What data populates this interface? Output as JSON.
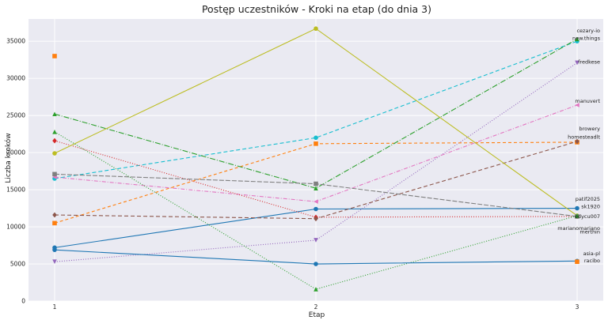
{
  "chart_data": {
    "type": "line",
    "title": "Postęp uczestników - Kroki na etap (do dnia 3)",
    "xlabel": "Etap",
    "ylabel": "Liczba kroków",
    "x": [
      1,
      2,
      3
    ],
    "xticks": [
      1,
      2,
      3
    ],
    "ylim": [
      0,
      38000
    ],
    "yticks": [
      0,
      5000,
      10000,
      15000,
      20000,
      25000,
      30000,
      35000
    ],
    "grid": true,
    "series": [
      {
        "name": "cezary-io",
        "color": "#1f77b4",
        "dash": "",
        "marker": "circle",
        "values": [
          7200,
          12400,
          12500
        ]
      },
      {
        "name": "new.things",
        "color": "#17becf",
        "dash": "5,3",
        "marker": "circle",
        "values": [
          16500,
          22000,
          35000
        ]
      },
      {
        "name": "fredkese",
        "color": "#9467bd",
        "dash": "1,2",
        "marker": "triangle-down",
        "values": [
          5300,
          8200,
          32100
        ]
      },
      {
        "name": "manuvert",
        "color": "#e377c2",
        "dash": "5,2,1,2",
        "marker": "triangle-left",
        "values": [
          16700,
          13400,
          26400
        ]
      },
      {
        "name": "browery",
        "color": "#d62728",
        "dash": "1,2",
        "marker": "diamond",
        "values": [
          21600,
          11300,
          11400
        ]
      },
      {
        "name": "homesteadlt",
        "color": "#ff7f0e",
        "dash": "4,3",
        "marker": "square",
        "values": [
          10500,
          21200,
          21400
        ]
      },
      {
        "name": "patif2025",
        "color": "#2ca02c",
        "dash": "7,2,1,2",
        "marker": "triangle-up",
        "values": [
          25200,
          15200,
          35300
        ]
      },
      {
        "name": "sk1920",
        "color": "#8c564b",
        "dash": "5,3",
        "marker": "diamond",
        "values": [
          11600,
          11100,
          21500
        ]
      },
      {
        "name": "edycu007",
        "color": "#bcbd22",
        "dash": "",
        "marker": "circle",
        "values": [
          19900,
          36700,
          11500
        ]
      },
      {
        "name": "marianomariano",
        "color": "#7f7f7f",
        "dash": "6,2",
        "marker": "square",
        "values": [
          17100,
          15800,
          11400
        ]
      },
      {
        "name": "merthin",
        "color": "#2ca02c",
        "dash": "1,2",
        "marker": "triangle-up",
        "values": [
          22800,
          1600,
          11500
        ]
      },
      {
        "name": "asia-pl",
        "color": "#1f77b4",
        "dash": "",
        "marker": "circle",
        "values": [
          6900,
          5000,
          5400
        ]
      },
      {
        "name": "racibo",
        "color": "#ff7f0e",
        "dash": "",
        "marker": "square",
        "values": [
          33000,
          null,
          5300
        ]
      }
    ],
    "end_labels": [
      {
        "text": "cezary-io",
        "y": 36200
      },
      {
        "text": "new.things",
        "y": 35200
      },
      {
        "text": "fredkese",
        "y": 32000
      },
      {
        "text": "manuvert",
        "y": 26700
      },
      {
        "text": "browery",
        "y": 23000
      },
      {
        "text": "homesteadlt",
        "y": 21900
      },
      {
        "text": "patif2025",
        "y": 13500
      },
      {
        "text": "sk1920",
        "y": 12500
      },
      {
        "text": "edycu007",
        "y": 11200
      },
      {
        "text": "marianomariano",
        "y": 9600
      },
      {
        "text": "merthin",
        "y": 9100
      },
      {
        "text": "asia-pl",
        "y": 6200
      },
      {
        "text": "racibo",
        "y": 5200
      }
    ]
  }
}
